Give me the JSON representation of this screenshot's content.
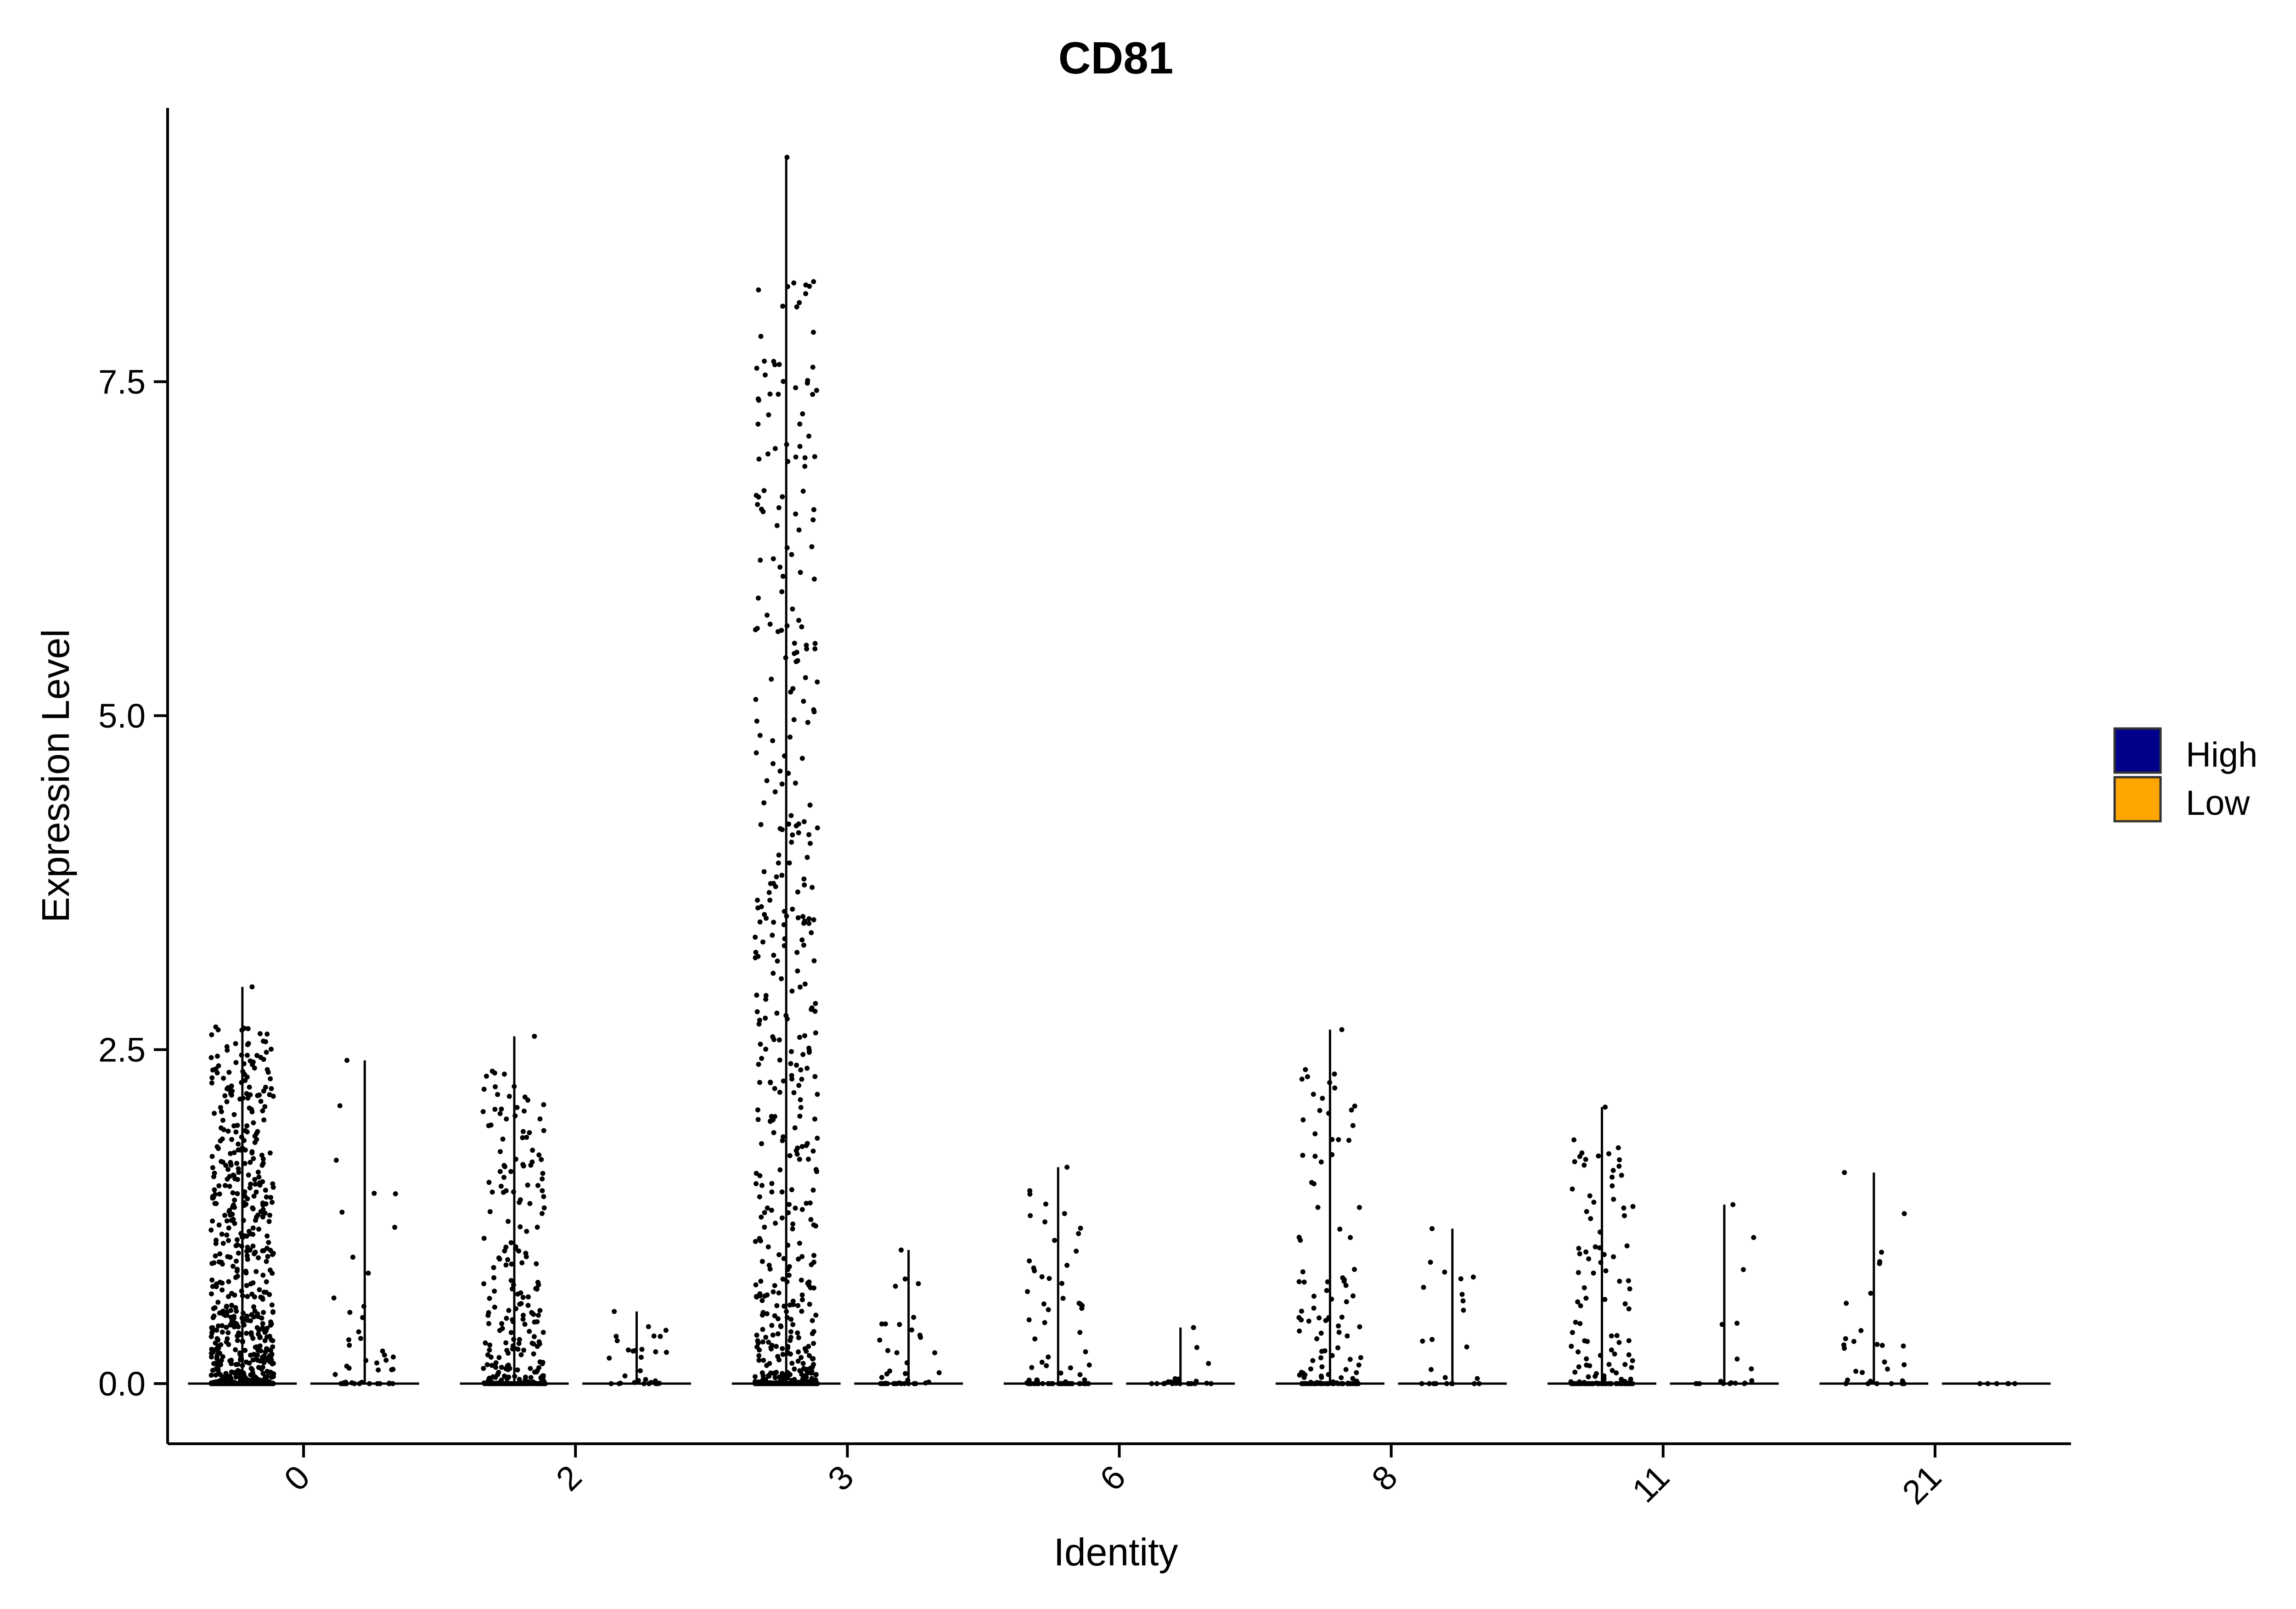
{
  "chart_data": {
    "type": "violin",
    "title": "CD81",
    "xlabel": "Identity",
    "ylabel": "Expression Level",
    "ylim": [
      -0.45,
      9.55
    ],
    "yticks": [
      0.0,
      2.5,
      5.0,
      7.5
    ],
    "ytick_labels": [
      "0.0",
      "2.5",
      "5.0",
      "7.5"
    ],
    "categories": [
      "0",
      "2",
      "3",
      "6",
      "8",
      "11",
      "21"
    ],
    "legend": {
      "placement": "right",
      "entries": [
        {
          "label": "High",
          "color": "#00008B"
        },
        {
          "label": "Low",
          "color": "#FFA500"
        }
      ]
    },
    "series": [
      {
        "name": "High",
        "color": "#00008B",
        "max_values": [
          2.97,
          2.6,
          9.18,
          1.62,
          2.65,
          2.07,
          1.58
        ],
        "point_counts": [
          900,
          320,
          720,
          80,
          130,
          150,
          30
        ]
      },
      {
        "name": "Low",
        "color": "#FFA500",
        "max_values": [
          2.42,
          0.54,
          1.0,
          0.42,
          1.16,
          1.34,
          0.0
        ],
        "point_counts": [
          45,
          30,
          40,
          25,
          25,
          18,
          6
        ]
      }
    ]
  }
}
